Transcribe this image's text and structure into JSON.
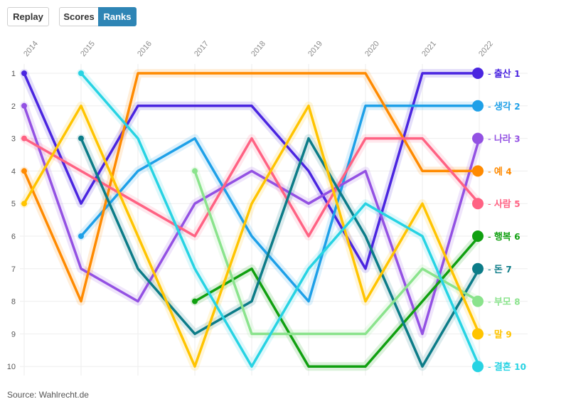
{
  "controls": {
    "replay": "Replay",
    "scores": "Scores",
    "ranks": "Ranks",
    "active": "Ranks"
  },
  "source": "Source: Wahlrecht.de",
  "chart_data": {
    "type": "line",
    "title": "",
    "xlabel": "",
    "ylabel": "",
    "x": [
      "2014",
      "2015",
      "2016",
      "2017",
      "2018",
      "2019",
      "2020",
      "2021",
      "2022"
    ],
    "y_ticks": [
      1,
      2,
      3,
      4,
      5,
      6,
      7,
      8,
      9,
      10
    ],
    "ylim": [
      1,
      10
    ],
    "y_inverted": true,
    "series": [
      {
        "name": "출산",
        "rank": "1",
        "color": "#4a25e0",
        "values": [
          1,
          5,
          2,
          2,
          2,
          4,
          7,
          1,
          1
        ]
      },
      {
        "name": "생각",
        "rank": "2",
        "color": "#1ea0e8",
        "values": [
          null,
          6,
          4,
          3,
          6,
          8,
          2,
          2,
          2
        ]
      },
      {
        "name": "나라",
        "rank": "3",
        "color": "#9351e3",
        "values": [
          2,
          7,
          8,
          5,
          4,
          5,
          4,
          9,
          3
        ]
      },
      {
        "name": "예",
        "rank": "4",
        "color": "#ff8a00",
        "values": [
          4,
          8,
          1,
          1,
          1,
          1,
          1,
          4,
          4
        ]
      },
      {
        "name": "사람",
        "rank": "5",
        "color": "#ff6283",
        "values": [
          3,
          4,
          5,
          6,
          3,
          6,
          3,
          3,
          5
        ]
      },
      {
        "name": "행복",
        "rank": "6",
        "color": "#10a010",
        "values": [
          null,
          null,
          null,
          8,
          7,
          10,
          10,
          8,
          6
        ]
      },
      {
        "name": "돈",
        "rank": "7",
        "color": "#0c7c88",
        "values": [
          null,
          3,
          7,
          9,
          8,
          3,
          6,
          10,
          7
        ]
      },
      {
        "name": "부모",
        "rank": "8",
        "color": "#8ae38c",
        "values": [
          null,
          null,
          null,
          4,
          9,
          9,
          9,
          7,
          8
        ]
      },
      {
        "name": "말",
        "rank": "9",
        "color": "#ffc400",
        "values": [
          5,
          2,
          6,
          10,
          5,
          2,
          8,
          5,
          9
        ]
      },
      {
        "name": "결혼",
        "rank": "10",
        "color": "#27d3e3",
        "values": [
          null,
          1,
          3,
          7,
          10,
          7,
          5,
          6,
          10
        ]
      }
    ],
    "grid": true
  }
}
